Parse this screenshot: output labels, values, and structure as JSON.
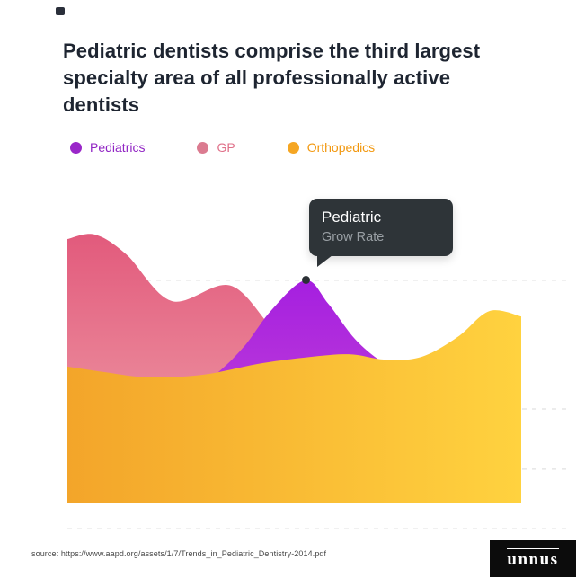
{
  "header": {
    "title": "Pediatric dentists comprise the third largest specialty area of all professionally active dentists"
  },
  "legend": [
    {
      "label": "Pediatrics",
      "color": "#9a27c9",
      "label_color": "#9125c4"
    },
    {
      "label": "GP",
      "color": "#db7b90",
      "label_color": "#e0718a"
    },
    {
      "label": "Orthopedics",
      "color": "#f5a623",
      "label_color": "#f2980f"
    }
  ],
  "tooltip": {
    "title": "Pediatric",
    "subtitle": "Grow Rate"
  },
  "footer": {
    "source": "source: https://www.aapd.org/assets/1/7/Trends_in_Pediatric_Dentistry-2014.pdf",
    "logo_text": "unnus"
  },
  "chart_data": {
    "type": "area",
    "title": "Specialty area growth comparison (unlabeled axes)",
    "xlabel": "",
    "ylabel": "",
    "ylim": [
      0,
      100
    ],
    "grid": "dashed-horizontal",
    "legend_position": "top",
    "gridlines_value_pct": [
      82.7,
      35,
      12.7,
      -9.3
    ],
    "series": [
      {
        "name": "GP",
        "color_start": "#e25a7c",
        "color_end": "#f0a6ad",
        "gradient": "vertical",
        "x_pct": [
          0,
          6,
          13,
          23,
          36,
          46.5,
          56.5,
          68,
          80,
          90,
          100
        ],
        "values_pct": [
          98,
          99.7,
          92.3,
          75,
          80.7,
          62.7,
          54,
          51.3,
          50,
          49.3,
          50
        ]
      },
      {
        "name": "Pediatrics",
        "color_start": "#a51fe0",
        "color_end": "#cb4ed3",
        "gradient": "vertical",
        "x_pct": [
          28,
          33,
          39,
          45,
          52.5,
          57.5,
          63.5,
          70,
          78
        ],
        "values_pct": [
          43.3,
          48.3,
          58.3,
          71.7,
          82.7,
          74,
          60.7,
          51.7,
          45
        ]
      },
      {
        "name": "Orthopedics",
        "color_start": "#f3a52a",
        "color_end": "#ffd23f",
        "gradient": "horizontal",
        "x_pct": [
          0,
          8,
          18,
          30,
          42,
          52,
          62,
          70,
          78,
          86,
          93,
          100
        ],
        "values_pct": [
          50.7,
          48.7,
          46.7,
          47.7,
          51.7,
          54,
          55.3,
          53.3,
          54.3,
          61.7,
          71.3,
          69.3
        ]
      }
    ],
    "annotation": {
      "label": "Pediatric",
      "sublabel": "Grow Rate",
      "series": "Pediatrics",
      "x_pct": 52.5,
      "value_pct": 82.7
    }
  }
}
